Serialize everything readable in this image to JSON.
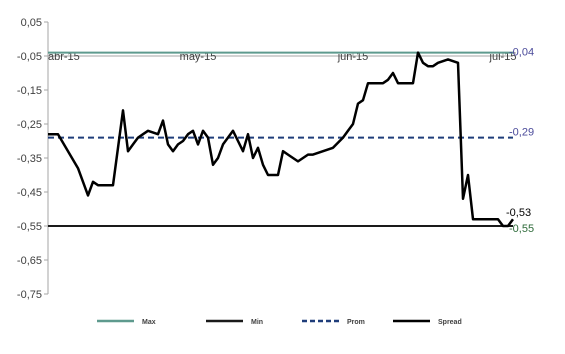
{
  "chart_data": {
    "type": "line",
    "title": "",
    "xlabel": "",
    "ylabel": "",
    "ylim": [
      -0.75,
      0.05
    ],
    "y_ticks": [
      0.05,
      -0.05,
      -0.15,
      -0.25,
      -0.35,
      -0.45,
      -0.55,
      -0.65,
      -0.75
    ],
    "y_tick_labels": [
      "0,05",
      "-0,05",
      "-0,15",
      "-0,25",
      "-0,35",
      "-0,45",
      "-0,55",
      "-0,65",
      "-0,75"
    ],
    "x_ticks": [
      0,
      30,
      61,
      91
    ],
    "x_tick_labels": [
      "abr-15",
      "may-15",
      "jun-15",
      "jul-15"
    ],
    "x_axis_crosses_at": -0.05,
    "grid": false,
    "legend_position": "bottom",
    "series": [
      {
        "name": "Max",
        "color": "#5e9a8e",
        "dash": "solid",
        "x": [
          0,
          93
        ],
        "values": [
          -0.04,
          -0.04
        ]
      },
      {
        "name": "Min",
        "color": "#1a1a1a",
        "dash": "solid",
        "x": [
          0,
          93
        ],
        "values": [
          -0.55,
          -0.55
        ]
      },
      {
        "name": "Prom",
        "color": "#1f3d7a",
        "dash": "dashed",
        "x": [
          0,
          93
        ],
        "values": [
          -0.29,
          -0.29
        ]
      },
      {
        "name": "Spread",
        "color": "#000000",
        "dash": "solid",
        "x": [
          0,
          2,
          4,
          6,
          8,
          9,
          10,
          11,
          13,
          15,
          16,
          17,
          18,
          19,
          20,
          22,
          23,
          24,
          25,
          26,
          27,
          28,
          29,
          30,
          31,
          32,
          33,
          34,
          35,
          37,
          38,
          39,
          40,
          41,
          42,
          43,
          44,
          45,
          46,
          47,
          48,
          50,
          51,
          52,
          53,
          55,
          57,
          59,
          60,
          61,
          62,
          63,
          64,
          65,
          66,
          67,
          68,
          69,
          70,
          72,
          73,
          74,
          75,
          76,
          77,
          78,
          80,
          82,
          83,
          84,
          85,
          86,
          87,
          88,
          90,
          91,
          92,
          93
        ],
        "values": [
          -0.28,
          -0.28,
          -0.33,
          -0.38,
          -0.46,
          -0.42,
          -0.43,
          -0.43,
          -0.43,
          -0.21,
          -0.33,
          -0.31,
          -0.29,
          -0.28,
          -0.27,
          -0.28,
          -0.24,
          -0.31,
          -0.33,
          -0.31,
          -0.3,
          -0.28,
          -0.27,
          -0.31,
          -0.27,
          -0.29,
          -0.37,
          -0.35,
          -0.31,
          -0.27,
          -0.3,
          -0.33,
          -0.28,
          -0.35,
          -0.32,
          -0.37,
          -0.4,
          -0.4,
          -0.4,
          -0.33,
          -0.34,
          -0.36,
          -0.35,
          -0.34,
          -0.34,
          -0.33,
          -0.32,
          -0.29,
          -0.27,
          -0.25,
          -0.19,
          -0.18,
          -0.13,
          -0.13,
          -0.13,
          -0.13,
          -0.12,
          -0.1,
          -0.13,
          -0.13,
          -0.13,
          -0.04,
          -0.07,
          -0.08,
          -0.08,
          -0.07,
          -0.06,
          -0.07,
          -0.47,
          -0.4,
          -0.53,
          -0.53,
          -0.53,
          -0.53,
          -0.53,
          -0.55,
          -0.55,
          -0.53
        ]
      }
    ],
    "end_labels": [
      {
        "series": "Max",
        "text": "-0,04",
        "color": "#4a4a9a"
      },
      {
        "series": "Prom",
        "text": "-0,29",
        "color": "#4a4a9a"
      },
      {
        "series": "Spread",
        "text": "-0,53",
        "color": "#000000"
      },
      {
        "series": "Min",
        "text": "-0,55",
        "color": "#2e6b3a"
      }
    ]
  }
}
